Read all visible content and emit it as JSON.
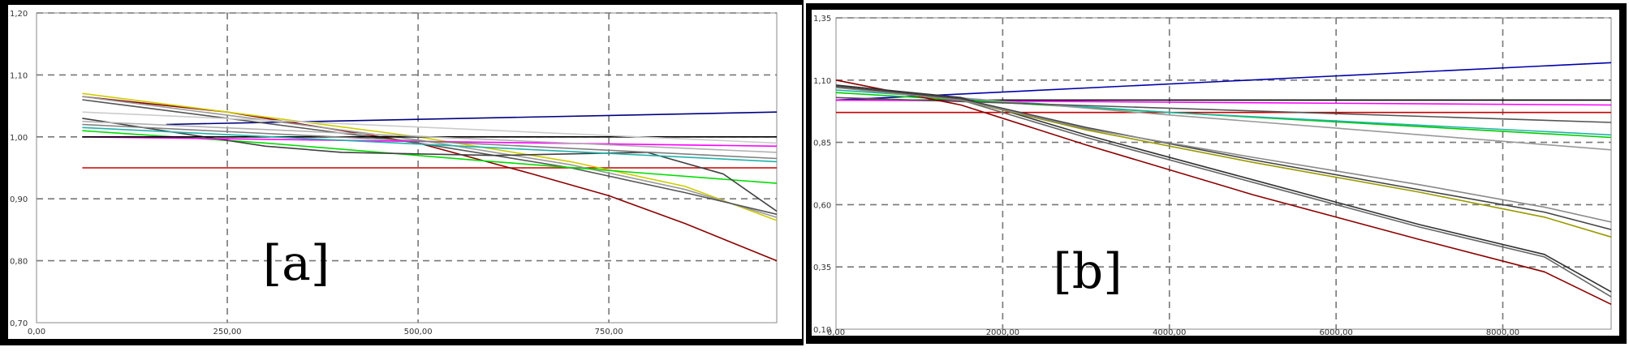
{
  "chart_data": [
    {
      "type": "line",
      "panel_label": "[a]",
      "xlim": [
        0,
        970
      ],
      "ylim": [
        0.7,
        1.2
      ],
      "x_ticks": [
        0,
        250,
        500,
        750
      ],
      "x_tick_labels": [
        "0,00",
        "250,00",
        "500,00",
        "750,00"
      ],
      "y_ticks": [
        0.7,
        0.8,
        0.9,
        1.0,
        1.1,
        1.2
      ],
      "y_tick_labels": [
        "0,70",
        "0,80",
        "0,90",
        "1,00",
        "1,10",
        "1,20"
      ],
      "grid": true,
      "series": [
        {
          "color": "#000080",
          "points": [
            [
              170,
              1.02
            ],
            [
              970,
              1.04
            ]
          ]
        },
        {
          "color": "#cc0000",
          "points": [
            [
              60,
              0.95
            ],
            [
              970,
              0.95
            ]
          ]
        },
        {
          "color": "#8b0000",
          "points": [
            [
              60,
              1.065
            ],
            [
              250,
              1.04
            ],
            [
              500,
              0.99
            ],
            [
              650,
              0.94
            ],
            [
              750,
              0.905
            ],
            [
              850,
              0.86
            ],
            [
              970,
              0.8
            ]
          ]
        },
        {
          "color": "#cccc00",
          "points": [
            [
              60,
              1.07
            ],
            [
              250,
              1.04
            ],
            [
              500,
              1.0
            ],
            [
              700,
              0.96
            ],
            [
              850,
              0.92
            ],
            [
              970,
              0.865
            ]
          ]
        },
        {
          "color": "#999999",
          "points": [
            [
              60,
              1.065
            ],
            [
              250,
              1.035
            ],
            [
              500,
              0.995
            ],
            [
              700,
              0.955
            ],
            [
              850,
              0.915
            ],
            [
              970,
              0.87
            ]
          ]
        },
        {
          "color": "#555555",
          "points": [
            [
              60,
              1.06
            ],
            [
              250,
              1.03
            ],
            [
              500,
              0.99
            ],
            [
              700,
              0.95
            ],
            [
              850,
              0.91
            ],
            [
              970,
              0.875
            ]
          ]
        },
        {
          "color": "#00dd00",
          "points": [
            [
              60,
              1.01
            ],
            [
              300,
              0.99
            ],
            [
              600,
              0.96
            ],
            [
              970,
              0.925
            ]
          ]
        },
        {
          "color": "#404040",
          "points": [
            [
              60,
              1.03
            ],
            [
              300,
              0.985
            ],
            [
              400,
              0.975
            ],
            [
              600,
              0.97
            ],
            [
              800,
              0.975
            ],
            [
              900,
              0.94
            ],
            [
              970,
              0.88
            ]
          ]
        },
        {
          "color": "#ff00ff",
          "points": [
            [
              60,
              1.0
            ],
            [
              970,
              0.985
            ]
          ]
        },
        {
          "color": "#000000",
          "points": [
            [
              60,
              1.0
            ],
            [
              970,
              1.0
            ]
          ]
        },
        {
          "color": "#cccccc",
          "points": [
            [
              60,
              1.04
            ],
            [
              970,
              0.99
            ]
          ]
        },
        {
          "color": "#20b2aa",
          "points": [
            [
              60,
              1.015
            ],
            [
              970,
              0.96
            ]
          ]
        },
        {
          "color": "#808080",
          "points": [
            [
              60,
              1.02
            ],
            [
              970,
              0.965
            ]
          ]
        },
        {
          "color": "#b0b0b0",
          "points": [
            [
              60,
              1.025
            ],
            [
              970,
              0.975
            ]
          ]
        }
      ]
    },
    {
      "type": "line",
      "panel_label": "[b]",
      "xlim": [
        0,
        9300
      ],
      "ylim": [
        0.1,
        1.35
      ],
      "x_ticks": [
        0,
        2000,
        4000,
        6000,
        8000
      ],
      "x_tick_labels": [
        "0,00",
        "2000,00",
        "4000,00",
        "6000,00",
        "8000,00"
      ],
      "y_ticks": [
        0.1,
        0.35,
        0.6,
        0.85,
        1.1,
        1.35
      ],
      "y_tick_labels": [
        "0,10",
        "0,35",
        "0,60",
        "0,85",
        "1,10",
        "1,35"
      ],
      "grid": true,
      "series": [
        {
          "color": "#0000aa",
          "points": [
            [
              0,
              1.02
            ],
            [
              9300,
              1.17
            ]
          ]
        },
        {
          "color": "#000000",
          "points": [
            [
              0,
              1.02
            ],
            [
              9300,
              1.02
            ]
          ]
        },
        {
          "color": "#ff00ff",
          "points": [
            [
              0,
              1.02
            ],
            [
              9300,
              1.0
            ]
          ]
        },
        {
          "color": "#cc0000",
          "points": [
            [
              0,
              0.97
            ],
            [
              9300,
              0.97
            ]
          ]
        },
        {
          "color": "#00cc00",
          "points": [
            [
              0,
              1.05
            ],
            [
              4000,
              0.97
            ],
            [
              9300,
              0.87
            ]
          ]
        },
        {
          "color": "#20b2aa",
          "points": [
            [
              0,
              1.06
            ],
            [
              4000,
              0.97
            ],
            [
              9300,
              0.88
            ]
          ]
        },
        {
          "color": "#999999",
          "points": [
            [
              0,
              1.07
            ],
            [
              4000,
              0.96
            ],
            [
              9300,
              0.82
            ]
          ]
        },
        {
          "color": "#555555",
          "points": [
            [
              0,
              1.03
            ],
            [
              9300,
              0.93
            ]
          ]
        },
        {
          "color": "#8b0000",
          "points": [
            [
              0,
              1.1
            ],
            [
              1500,
              1.0
            ],
            [
              3000,
              0.84
            ],
            [
              5000,
              0.64
            ],
            [
              7000,
              0.46
            ],
            [
              8500,
              0.33
            ],
            [
              9300,
              0.2
            ]
          ]
        },
        {
          "color": "#333333",
          "points": [
            [
              0,
              1.08
            ],
            [
              1500,
              1.03
            ],
            [
              3000,
              0.88
            ],
            [
              5000,
              0.7
            ],
            [
              7000,
              0.52
            ],
            [
              8500,
              0.4
            ],
            [
              9300,
              0.25
            ]
          ]
        },
        {
          "color": "#666666",
          "points": [
            [
              0,
              1.075
            ],
            [
              1500,
              1.02
            ],
            [
              3000,
              0.87
            ],
            [
              5000,
              0.69
            ],
            [
              7000,
              0.51
            ],
            [
              8500,
              0.39
            ],
            [
              9300,
              0.23
            ]
          ]
        },
        {
          "color": "#999900",
          "points": [
            [
              0,
              1.07
            ],
            [
              1500,
              1.02
            ],
            [
              3000,
              0.9
            ],
            [
              5000,
              0.77
            ],
            [
              7000,
              0.65
            ],
            [
              8500,
              0.55
            ],
            [
              9300,
              0.47
            ]
          ]
        },
        {
          "color": "#444444",
          "points": [
            [
              0,
              1.075
            ],
            [
              1500,
              1.025
            ],
            [
              3000,
              0.91
            ],
            [
              5000,
              0.78
            ],
            [
              7000,
              0.66
            ],
            [
              8500,
              0.57
            ],
            [
              9300,
              0.5
            ]
          ]
        },
        {
          "color": "#888888",
          "points": [
            [
              0,
              1.07
            ],
            [
              1500,
              1.02
            ],
            [
              3000,
              0.905
            ],
            [
              5000,
              0.79
            ],
            [
              7000,
              0.68
            ],
            [
              8500,
              0.59
            ],
            [
              9300,
              0.53
            ]
          ]
        }
      ]
    }
  ]
}
